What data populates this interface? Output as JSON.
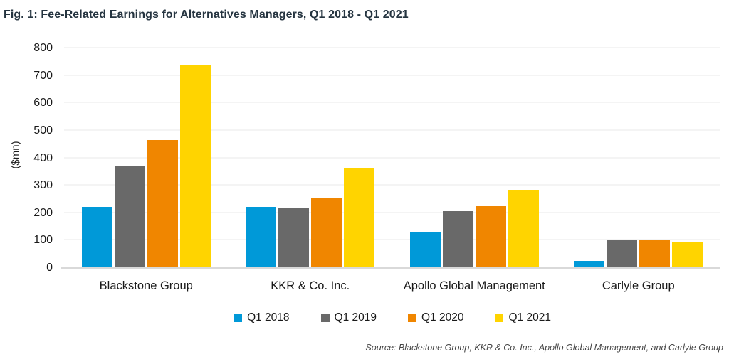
{
  "title": "Fig. 1: Fee-Related Earnings for Alternatives Managers, Q1 2018 - Q1 2021",
  "source": "Source: Blackstone Group, KKR & Co. Inc., Apollo Global Management, and Carlyle Group",
  "chart_data": {
    "type": "bar",
    "title": "Fig. 1: Fee-Related Earnings for Alternatives Managers, Q1 2018 - Q1 2021",
    "xlabel": "",
    "ylabel": "($mn)",
    "ylim": [
      0,
      800
    ],
    "ytick_step": 100,
    "grid": true,
    "legend_position": "bottom",
    "categories": [
      "Blackstone Group",
      "KKR & Co. Inc.",
      "Apollo Global Management",
      "Carlyle Group"
    ],
    "series": [
      {
        "name": "Q1 2018",
        "color": "#0099d8",
        "values": [
          222,
          222,
          130,
          26
        ]
      },
      {
        "name": "Q1 2019",
        "color": "#696969",
        "values": [
          373,
          221,
          207,
          101
        ]
      },
      {
        "name": "Q1 2020",
        "color": "#f08600",
        "values": [
          467,
          255,
          226,
          100
        ]
      },
      {
        "name": "Q1 2021",
        "color": "#ffd400",
        "values": [
          740,
          362,
          285,
          92
        ]
      }
    ]
  }
}
